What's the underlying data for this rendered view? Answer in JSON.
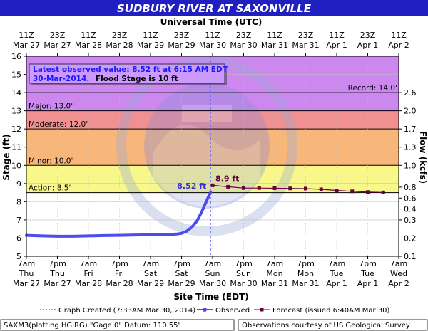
{
  "title": "SUDBURY RIVER AT SAXONVILLE",
  "colors": {
    "title_band": "#2020c0",
    "major": "#cc88ee",
    "moderate": "#f09090",
    "minor": "#f7b77a",
    "action": "#f7f78a",
    "observed": "#4b4bf0",
    "forecast": "#660044",
    "now_line": "#6666ff"
  },
  "chart_data": {
    "type": "line",
    "top_axis_label": "Universal Time (UTC)",
    "xlabel": "Site Time (EDT)",
    "ylabel": "Stage (ft)",
    "y2label": "Flow (kcfs)",
    "x_range_hours_edt": [
      "Mar 27 07:00",
      "Apr 2 07:00"
    ],
    "ylim": [
      5,
      16
    ],
    "y_ticks": [
      5,
      6,
      7,
      8,
      9,
      10,
      11,
      12,
      13,
      14,
      15,
      16
    ],
    "flow_ticks": [
      {
        "stage": 5,
        "label": "0.1"
      },
      {
        "stage": 6,
        "label": "0.2"
      },
      {
        "stage": 7,
        "label": "0.3"
      },
      {
        "stage": 7.6,
        "label": "0.4"
      },
      {
        "stage": 8.2,
        "label": "0.6"
      },
      {
        "stage": 8.8,
        "label": "0.8"
      },
      {
        "stage": 10,
        "label": "1.0"
      },
      {
        "stage": 11,
        "label": "1.3"
      },
      {
        "stage": 12,
        "label": "1.7"
      },
      {
        "stage": 13,
        "label": "2.0"
      },
      {
        "stage": 14,
        "label": "2.6"
      }
    ],
    "top_ticks": [
      {
        "line1": "11Z",
        "line2": "Mar 27"
      },
      {
        "line1": "23Z",
        "line2": "Mar 27"
      },
      {
        "line1": "11Z",
        "line2": "Mar 28"
      },
      {
        "line1": "23Z",
        "line2": "Mar 28"
      },
      {
        "line1": "11Z",
        "line2": "Mar 29"
      },
      {
        "line1": "23Z",
        "line2": "Mar 29"
      },
      {
        "line1": "11Z",
        "line2": "Mar 30"
      },
      {
        "line1": "23Z",
        "line2": "Mar 30"
      },
      {
        "line1": "11Z",
        "line2": "Mar 31"
      },
      {
        "line1": "23Z",
        "line2": "Mar 31"
      },
      {
        "line1": "11Z",
        "line2": "Apr 1"
      },
      {
        "line1": "23Z",
        "line2": "Apr 1"
      },
      {
        "line1": "11Z",
        "line2": "Apr 2"
      }
    ],
    "bottom_ticks": [
      {
        "line1": "7am",
        "line2": "Thu",
        "line3": "Mar 27"
      },
      {
        "line1": "7pm",
        "line2": "Thu",
        "line3": "Mar 27"
      },
      {
        "line1": "7am",
        "line2": "Fri",
        "line3": "Mar 28"
      },
      {
        "line1": "7pm",
        "line2": "Fri",
        "line3": "Mar 28"
      },
      {
        "line1": "7am",
        "line2": "Sat",
        "line3": "Mar 29"
      },
      {
        "line1": "7pm",
        "line2": "Sat",
        "line3": "Mar 29"
      },
      {
        "line1": "7am",
        "line2": "Sun",
        "line3": "Mar 30"
      },
      {
        "line1": "7pm",
        "line2": "Sun",
        "line3": "Mar 30"
      },
      {
        "line1": "7am",
        "line2": "Mon",
        "line3": "Mar 31"
      },
      {
        "line1": "7pm",
        "line2": "Mon",
        "line3": "Mar 31"
      },
      {
        "line1": "7am",
        "line2": "Tue",
        "line3": "Apr 1"
      },
      {
        "line1": "7pm",
        "line2": "Tue",
        "line3": "Apr 1"
      },
      {
        "line1": "7am",
        "line2": "Wed",
        "line3": "Apr 2"
      }
    ],
    "flood_categories": [
      {
        "name": "Action",
        "label": "Action: 8.5'",
        "from": 8.5,
        "to": 10
      },
      {
        "name": "Minor",
        "label": "Minor: 10.0'",
        "from": 10,
        "to": 12
      },
      {
        "name": "Moderate",
        "label": "Moderate: 12.0'",
        "from": 12,
        "to": 13
      },
      {
        "name": "Major",
        "label": "Major: 13.0'",
        "from": 13,
        "to": 16
      }
    ],
    "record": {
      "label": "Record: 14.0'",
      "value": 14.0
    },
    "observed_label": "8.52 ft",
    "forecast_label": "8.9 ft",
    "now_hour": 71.25,
    "observed": [
      [
        0,
        6.15
      ],
      [
        6,
        6.12
      ],
      [
        12,
        6.1
      ],
      [
        18,
        6.1
      ],
      [
        24,
        6.12
      ],
      [
        30,
        6.14
      ],
      [
        36,
        6.15
      ],
      [
        42,
        6.17
      ],
      [
        48,
        6.18
      ],
      [
        54,
        6.19
      ],
      [
        56,
        6.2
      ],
      [
        58,
        6.22
      ],
      [
        60,
        6.26
      ],
      [
        62,
        6.38
      ],
      [
        64,
        6.6
      ],
      [
        66,
        6.95
      ],
      [
        68,
        7.5
      ],
      [
        70,
        8.15
      ],
      [
        71.25,
        8.52
      ]
    ],
    "forecast": [
      [
        72,
        8.9
      ],
      [
        78,
        8.82
      ],
      [
        84,
        8.75
      ],
      [
        90,
        8.75
      ],
      [
        96,
        8.74
      ],
      [
        102,
        8.73
      ],
      [
        108,
        8.72
      ],
      [
        114,
        8.68
      ],
      [
        120,
        8.62
      ],
      [
        126,
        8.57
      ],
      [
        132,
        8.53
      ],
      [
        138,
        8.51
      ]
    ]
  },
  "info_box": {
    "line1": "Latest observed value: 8.52 ft at 6:15 AM EDT",
    "line2a": "30-Mar-2014.",
    "line2b": "Flood Stage is 10 ft"
  },
  "legend": {
    "graph_created": "Graph Created (7:33AM Mar 30, 2014)",
    "observed": "Observed",
    "forecast": "Forecast (issued 6:40AM Mar 30)"
  },
  "footer": {
    "left": "SAXM3(plotting HGIRG) \"Gage 0\" Datum: 110.55'",
    "right": "Observations courtesy of US Geological Survey"
  }
}
